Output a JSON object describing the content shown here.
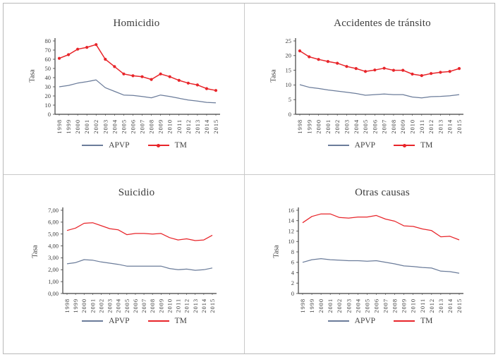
{
  "palette": {
    "apvp": "#6b7c9a",
    "tm": "#e8252a",
    "axis": "#404040",
    "tick_text": "#3f3f3f",
    "frame_border": "#b9b9b9",
    "divider": "#c9c9c9"
  },
  "legend": {
    "apvp_label": "APVP",
    "tm_label": "TM"
  },
  "chart_data": [
    {
      "type": "line",
      "title": "Homicidio",
      "ylabel": "Tasa",
      "xlabel": "",
      "categories": [
        "1998",
        "1999",
        "2000",
        "2001",
        "2002",
        "2003",
        "2004",
        "2005",
        "2006",
        "2007",
        "2008",
        "2009",
        "2010",
        "2011",
        "2012",
        "2013",
        "2014",
        "2015"
      ],
      "ylim": [
        0,
        80
      ],
      "ytick_values": [
        0,
        10,
        20,
        30,
        40,
        50,
        60,
        70,
        80
      ],
      "ytick_labels": [
        "0",
        "10",
        "20",
        "30",
        "40",
        "50",
        "60",
        "70",
        "80"
      ],
      "grid": false,
      "legend_position": "bottom",
      "series": [
        {
          "name": "APVP",
          "color_key": "apvp",
          "marker": false,
          "values": [
            30,
            31.5,
            34,
            35.5,
            37.5,
            29,
            25,
            21,
            20.5,
            19.5,
            18,
            21,
            19.5,
            17.5,
            15.5,
            14.5,
            13,
            12.5
          ]
        },
        {
          "name": "TM",
          "color_key": "tm",
          "marker": true,
          "values": [
            61,
            65,
            71,
            73,
            76,
            60,
            52,
            44,
            42,
            41,
            38,
            44,
            41,
            37,
            34,
            32,
            28,
            26
          ]
        }
      ]
    },
    {
      "type": "line",
      "title": "Accidentes de tránsito",
      "ylabel": "Tasa",
      "xlabel": "",
      "categories": [
        "1998",
        "1999",
        "2000",
        "2001",
        "2002",
        "2003",
        "2004",
        "2005",
        "2006",
        "2007",
        "2008",
        "2009",
        "2010",
        "2011",
        "2012",
        "2013",
        "2014",
        "2015"
      ],
      "ylim": [
        0,
        25
      ],
      "ytick_values": [
        0,
        5,
        10,
        15,
        20,
        25
      ],
      "ytick_labels": [
        "0",
        "5",
        "10",
        "15",
        "20",
        "25"
      ],
      "grid": false,
      "legend_position": "bottom",
      "series": [
        {
          "name": "APVP",
          "color_key": "apvp",
          "marker": false,
          "values": [
            10.1,
            9.2,
            8.8,
            8.3,
            7.9,
            7.5,
            7.1,
            6.5,
            6.7,
            6.9,
            6.7,
            6.7,
            5.9,
            5.6,
            6.0,
            6.1,
            6.3,
            6.7
          ]
        },
        {
          "name": "TM",
          "color_key": "tm",
          "marker": true,
          "values": [
            21.6,
            19.6,
            18.7,
            18.0,
            17.4,
            16.3,
            15.6,
            14.6,
            15.1,
            15.7,
            15.0,
            15.0,
            13.7,
            13.2,
            13.9,
            14.3,
            14.6,
            15.6
          ]
        }
      ]
    },
    {
      "type": "line",
      "title": "Suicidio",
      "ylabel": "Tasa",
      "xlabel": "",
      "categories": [
        "1998",
        "1999",
        "2000",
        "2001",
        "2002",
        "2003",
        "2004",
        "2005",
        "2006",
        "2007",
        "2008",
        "2009",
        "2010",
        "2011",
        "2012",
        "2013",
        "2014",
        "2015"
      ],
      "ylim": [
        0,
        7
      ],
      "ytick_values": [
        0,
        1,
        2,
        3,
        4,
        5,
        6,
        7
      ],
      "ytick_labels": [
        "0,00",
        "1,00",
        "2,00",
        "3,00",
        "4,00",
        "5,00",
        "6,00",
        "7,00"
      ],
      "grid": false,
      "legend_position": "bottom",
      "series": [
        {
          "name": "APVP",
          "color_key": "apvp",
          "marker": false,
          "values": [
            2.5,
            2.6,
            2.85,
            2.8,
            2.65,
            2.55,
            2.45,
            2.3,
            2.3,
            2.3,
            2.3,
            2.3,
            2.1,
            2.0,
            2.05,
            1.95,
            2.0,
            2.15
          ]
        },
        {
          "name": "TM",
          "color_key": "tm",
          "marker": false,
          "values": [
            5.3,
            5.5,
            5.9,
            5.95,
            5.7,
            5.45,
            5.35,
            4.95,
            5.05,
            5.05,
            5.0,
            5.05,
            4.7,
            4.5,
            4.6,
            4.45,
            4.5,
            4.9
          ]
        }
      ]
    },
    {
      "type": "line",
      "title": "Otras causas",
      "ylabel": "Tasa",
      "xlabel": "",
      "categories": [
        "1998",
        "1999",
        "2000",
        "2001",
        "2002",
        "2003",
        "2004",
        "2005",
        "2006",
        "2007",
        "2008",
        "2009",
        "2010",
        "2011",
        "2012",
        "2013",
        "2014",
        "2015"
      ],
      "ylim": [
        0,
        16
      ],
      "ytick_values": [
        0,
        2,
        4,
        6,
        8,
        10,
        12,
        14,
        16
      ],
      "ytick_labels": [
        "0",
        "2",
        "4",
        "6",
        "8",
        "10",
        "12",
        "14",
        "16"
      ],
      "grid": false,
      "legend_position": "bottom",
      "series": [
        {
          "name": "APVP",
          "color_key": "apvp",
          "marker": false,
          "values": [
            6.0,
            6.5,
            6.7,
            6.5,
            6.4,
            6.3,
            6.3,
            6.2,
            6.3,
            6.0,
            5.7,
            5.3,
            5.2,
            5.0,
            4.9,
            4.3,
            4.2,
            3.9
          ]
        },
        {
          "name": "TM",
          "color_key": "tm",
          "marker": false,
          "values": [
            13.6,
            14.8,
            15.3,
            15.3,
            14.6,
            14.5,
            14.7,
            14.7,
            15.0,
            14.3,
            13.9,
            13.0,
            12.9,
            12.4,
            12.1,
            10.9,
            11.0,
            10.3
          ]
        }
      ]
    }
  ]
}
